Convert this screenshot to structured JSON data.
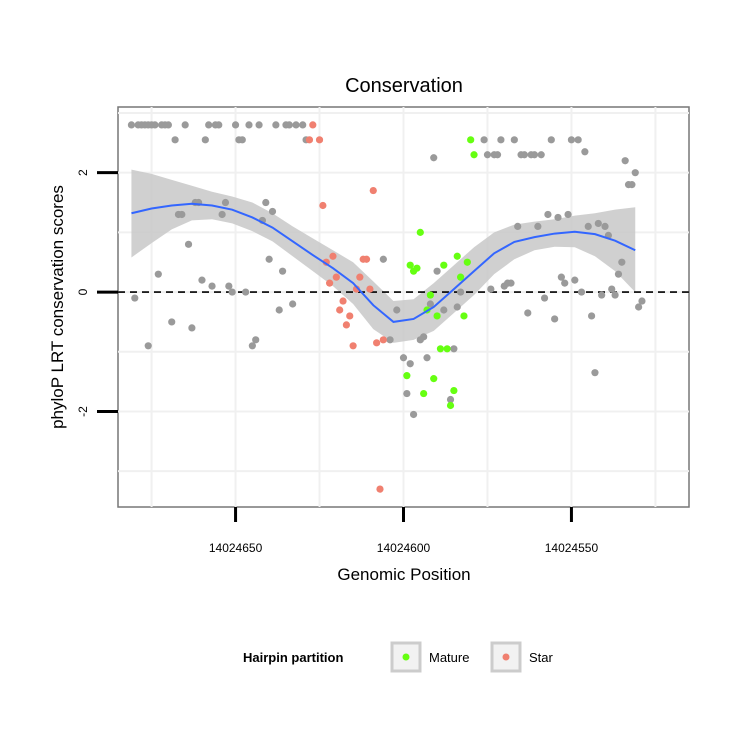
{
  "colors": {
    "background_point": "#9a9a9a",
    "mature": "#66ff11",
    "star": "#f08070",
    "smooth_line": "#3366ff",
    "ribbon": "#c8c8c8",
    "panel_border": "#777777",
    "grid": "#f0f0f0"
  },
  "chart_data": {
    "type": "scatter",
    "title": "Conservation",
    "xlabel": "Genomic Position",
    "ylabel": "phyloP LRT conservation scores",
    "x_reversed": true,
    "xlim": [
      14024685,
      14024515
    ],
    "ylim": [
      -3.6,
      3.1
    ],
    "x_ticks": [
      {
        "value": 14024650,
        "label": "14024650"
      },
      {
        "value": 14024600,
        "label": "14024600"
      },
      {
        "value": 14024550,
        "label": "14024550"
      }
    ],
    "y_ticks": [
      {
        "value": -2,
        "label": "-2"
      },
      {
        "value": 0,
        "label": "0"
      },
      {
        "value": 2,
        "label": "2"
      }
    ],
    "reference_line": {
      "y": 0,
      "style": "dashed"
    },
    "legend": {
      "title": "Hairpin partition",
      "position": "bottom",
      "entries": [
        {
          "label": "Mature",
          "series": "mature"
        },
        {
          "label": "Star",
          "series": "star"
        }
      ]
    },
    "series": [
      {
        "name": "other",
        "points": [
          [
            14024681,
            2.8
          ],
          [
            14024680,
            -0.1
          ],
          [
            14024679,
            2.8
          ],
          [
            14024678,
            2.8
          ],
          [
            14024677,
            2.8
          ],
          [
            14024676,
            -0.9
          ],
          [
            14024676,
            2.8
          ],
          [
            14024675,
            2.8
          ],
          [
            14024674,
            2.8
          ],
          [
            14024673,
            0.3
          ],
          [
            14024672,
            2.8
          ],
          [
            14024671,
            2.8
          ],
          [
            14024670,
            2.8
          ],
          [
            14024669,
            -0.5
          ],
          [
            14024668,
            2.55
          ],
          [
            14024667,
            1.3
          ],
          [
            14024666,
            1.3
          ],
          [
            14024665,
            2.8
          ],
          [
            14024664,
            0.8
          ],
          [
            14024663,
            -0.6
          ],
          [
            14024662,
            1.5
          ],
          [
            14024661,
            1.5
          ],
          [
            14024660,
            0.2
          ],
          [
            14024659,
            2.55
          ],
          [
            14024658,
            2.8
          ],
          [
            14024657,
            0.1
          ],
          [
            14024656,
            2.8
          ],
          [
            14024655,
            2.8
          ],
          [
            14024654,
            1.3
          ],
          [
            14024653,
            1.5
          ],
          [
            14024652,
            0.1
          ],
          [
            14024651,
            0.0
          ],
          [
            14024650,
            2.8
          ],
          [
            14024649,
            2.55
          ],
          [
            14024648,
            2.55
          ],
          [
            14024647,
            0.0
          ],
          [
            14024646,
            2.8
          ],
          [
            14024645,
            -0.9
          ],
          [
            14024644,
            -0.8
          ],
          [
            14024643,
            2.8
          ],
          [
            14024642,
            1.2
          ],
          [
            14024641,
            1.5
          ],
          [
            14024640,
            0.55
          ],
          [
            14024639,
            1.35
          ],
          [
            14024638,
            2.8
          ],
          [
            14024637,
            -0.3
          ],
          [
            14024636,
            0.35
          ],
          [
            14024635,
            2.8
          ],
          [
            14024634,
            2.8
          ],
          [
            14024633,
            -0.2
          ],
          [
            14024632,
            2.8
          ],
          [
            14024630,
            2.8
          ],
          [
            14024629,
            2.55
          ],
          [
            14024606,
            0.55
          ],
          [
            14024604,
            -0.8
          ],
          [
            14024602,
            -0.3
          ],
          [
            14024600,
            -1.1
          ],
          [
            14024599,
            -1.7
          ],
          [
            14024598,
            -1.2
          ],
          [
            14024597,
            -2.05
          ],
          [
            14024595,
            -0.8
          ],
          [
            14024594,
            -0.75
          ],
          [
            14024593,
            -1.1
          ],
          [
            14024592,
            -0.2
          ],
          [
            14024591,
            2.25
          ],
          [
            14024590,
            0.35
          ],
          [
            14024588,
            -0.3
          ],
          [
            14024586,
            -1.8
          ],
          [
            14024585,
            -0.95
          ],
          [
            14024584,
            -0.25
          ],
          [
            14024583,
            0.0
          ],
          [
            14024576,
            2.55
          ],
          [
            14024575,
            2.3
          ],
          [
            14024574,
            0.05
          ],
          [
            14024573,
            2.3
          ],
          [
            14024572,
            2.3
          ],
          [
            14024571,
            2.55
          ],
          [
            14024570,
            0.1
          ],
          [
            14024569,
            0.15
          ],
          [
            14024568,
            0.15
          ],
          [
            14024567,
            2.55
          ],
          [
            14024566,
            1.1
          ],
          [
            14024565,
            2.3
          ],
          [
            14024564,
            2.3
          ],
          [
            14024563,
            -0.35
          ],
          [
            14024562,
            2.3
          ],
          [
            14024561,
            2.3
          ],
          [
            14024560,
            1.1
          ],
          [
            14024559,
            2.3
          ],
          [
            14024558,
            -0.1
          ],
          [
            14024557,
            1.3
          ],
          [
            14024556,
            2.55
          ],
          [
            14024555,
            -0.45
          ],
          [
            14024554,
            1.25
          ],
          [
            14024553,
            0.25
          ],
          [
            14024552,
            0.15
          ],
          [
            14024551,
            1.3
          ],
          [
            14024550,
            2.55
          ],
          [
            14024549,
            0.2
          ],
          [
            14024548,
            2.55
          ],
          [
            14024547,
            0.0
          ],
          [
            14024546,
            2.35
          ],
          [
            14024545,
            1.1
          ],
          [
            14024544,
            -0.4
          ],
          [
            14024543,
            -1.35
          ],
          [
            14024542,
            1.15
          ],
          [
            14024541,
            -0.05
          ],
          [
            14024540,
            1.1
          ],
          [
            14024539,
            0.95
          ],
          [
            14024538,
            0.05
          ],
          [
            14024537,
            -0.05
          ],
          [
            14024536,
            0.3
          ],
          [
            14024535,
            0.5
          ],
          [
            14024534,
            2.2
          ],
          [
            14024533,
            1.8
          ],
          [
            14024532,
            1.8
          ],
          [
            14024531,
            2.0
          ],
          [
            14024530,
            -0.25
          ],
          [
            14024529,
            -0.15
          ]
        ]
      },
      {
        "name": "star",
        "points": [
          [
            14024628,
            2.55
          ],
          [
            14024627,
            2.8
          ],
          [
            14024625,
            2.55
          ],
          [
            14024624,
            1.45
          ],
          [
            14024623,
            0.5
          ],
          [
            14024622,
            0.15
          ],
          [
            14024621,
            0.6
          ],
          [
            14024620,
            0.25
          ],
          [
            14024619,
            -0.3
          ],
          [
            14024618,
            -0.15
          ],
          [
            14024617,
            -0.55
          ],
          [
            14024616,
            -0.4
          ],
          [
            14024615,
            -0.9
          ],
          [
            14024614,
            0.05
          ],
          [
            14024613,
            0.25
          ],
          [
            14024612,
            0.55
          ],
          [
            14024611,
            0.55
          ],
          [
            14024610,
            0.05
          ],
          [
            14024609,
            1.7
          ],
          [
            14024608,
            -0.85
          ],
          [
            14024607,
            -3.3
          ],
          [
            14024606,
            -0.8
          ]
        ]
      },
      {
        "name": "mature",
        "points": [
          [
            14024599,
            -1.4
          ],
          [
            14024598,
            0.45
          ],
          [
            14024597,
            0.35
          ],
          [
            14024596,
            0.4
          ],
          [
            14024595,
            1.0
          ],
          [
            14024594,
            -1.7
          ],
          [
            14024593,
            -0.3
          ],
          [
            14024592,
            -0.05
          ],
          [
            14024591,
            -1.45
          ],
          [
            14024590,
            -0.4
          ],
          [
            14024589,
            -0.95
          ],
          [
            14024588,
            0.45
          ],
          [
            14024587,
            -0.95
          ],
          [
            14024586,
            -1.9
          ],
          [
            14024585,
            -1.65
          ],
          [
            14024584,
            0.6
          ],
          [
            14024583,
            0.25
          ],
          [
            14024582,
            -0.4
          ],
          [
            14024581,
            0.5
          ],
          [
            14024580,
            2.55
          ],
          [
            14024579,
            2.3
          ]
        ]
      }
    ],
    "smooth": {
      "x": [
        14024681,
        14024675,
        14024669,
        14024663,
        14024657,
        14024651,
        14024645,
        14024639,
        14024633,
        14024627,
        14024621,
        14024615,
        14024609,
        14024603,
        14024597,
        14024591,
        14024585,
        14024579,
        14024573,
        14024567,
        14024561,
        14024555,
        14024549,
        14024543,
        14024537,
        14024531
      ],
      "y": [
        1.32,
        1.4,
        1.45,
        1.48,
        1.45,
        1.38,
        1.25,
        1.08,
        0.85,
        0.62,
        0.4,
        0.15,
        -0.22,
        -0.5,
        -0.45,
        -0.25,
        0.05,
        0.35,
        0.65,
        0.84,
        0.92,
        0.98,
        1.01,
        0.97,
        0.86,
        0.7
      ],
      "lower": [
        0.58,
        0.82,
        1.05,
        1.2,
        1.22,
        1.15,
        1.02,
        0.85,
        0.6,
        0.35,
        0.1,
        -0.2,
        -0.62,
        -0.85,
        -0.8,
        -0.65,
        -0.35,
        -0.05,
        0.3,
        0.55,
        0.7,
        0.76,
        0.75,
        0.6,
        0.35,
        0.0
      ],
      "upper": [
        2.05,
        1.98,
        1.88,
        1.78,
        1.68,
        1.6,
        1.5,
        1.32,
        1.1,
        0.9,
        0.7,
        0.5,
        0.18,
        -0.15,
        -0.12,
        0.15,
        0.45,
        0.75,
        1.0,
        1.13,
        1.18,
        1.22,
        1.28,
        1.32,
        1.38,
        1.42
      ]
    }
  }
}
